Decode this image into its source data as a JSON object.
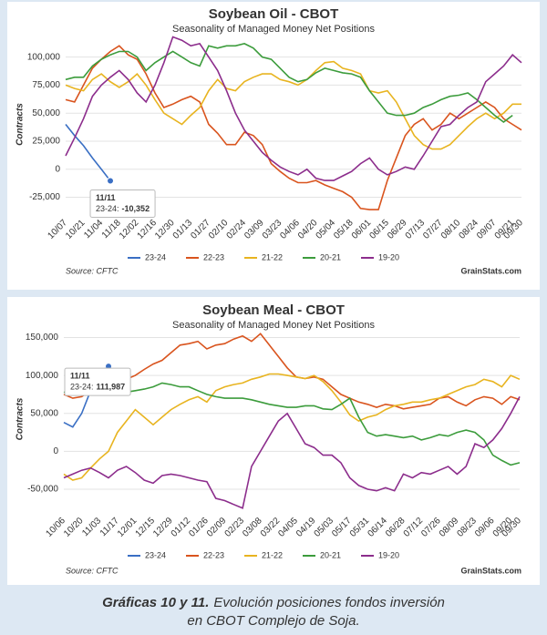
{
  "chart_data": [
    {
      "type": "line",
      "title": "Soybean Oil - CBOT",
      "subtitle": "Seasonality of Managed Money Net Positions",
      "y_label": "Contracts",
      "source": "Source: CFTC",
      "brand": "GrainStats.com",
      "grid": true,
      "legend": "bottom",
      "categories": [
        "10/07",
        null,
        "10/21",
        null,
        "11/04",
        null,
        "11/18",
        null,
        "12/02",
        null,
        "12/16",
        null,
        "12/30",
        null,
        "01/13",
        null,
        "01/27",
        null,
        "02/10",
        null,
        "02/24",
        null,
        "03/09",
        null,
        "03/23",
        null,
        "04/06",
        null,
        "04/20",
        null,
        "05/04",
        null,
        "05/18",
        null,
        "06/01",
        null,
        "06/15",
        null,
        "06/29",
        null,
        "07/13",
        null,
        "07/27",
        null,
        "08/10",
        null,
        "08/24",
        null,
        "09/07",
        null,
        "09/21",
        "09/30"
      ],
      "ylim": [
        -40000,
        120000
      ],
      "yticks": [
        {
          "value": -25000,
          "label": "-25,000"
        },
        0,
        {
          "value": 25000,
          "label": "25,000"
        },
        {
          "value": 50000,
          "label": "50,000"
        },
        {
          "value": 75000,
          "label": "75,000"
        },
        {
          "value": 100000,
          "label": "100,000"
        }
      ],
      "series": [
        {
          "name": "23-24",
          "color": "#3a6fc4",
          "values": [
            40000,
            30000,
            21000,
            10000,
            0,
            -10352,
            null,
            null,
            null,
            null,
            null,
            null,
            null,
            null,
            null,
            null,
            null,
            null,
            null,
            null,
            null,
            null,
            null,
            null,
            null,
            null,
            null,
            null,
            null,
            null,
            null,
            null,
            null,
            null,
            null,
            null,
            null,
            null,
            null,
            null,
            null,
            null,
            null,
            null,
            null,
            null,
            null,
            null,
            null,
            null,
            null,
            null
          ]
        },
        {
          "name": "22-23",
          "color": "#d9541e",
          "values": [
            62000,
            60000,
            75000,
            90000,
            98000,
            105000,
            110000,
            102000,
            98000,
            85000,
            68000,
            55000,
            58000,
            62000,
            65000,
            60000,
            40000,
            32000,
            22000,
            22000,
            33000,
            30000,
            22000,
            5000,
            -2000,
            -8000,
            -12000,
            -12000,
            -10000,
            -14000,
            -17000,
            -20000,
            -25000,
            -35000,
            -36000,
            -36000,
            -10000,
            10000,
            30000,
            40000,
            45000,
            35000,
            40000,
            50000,
            45000,
            50000,
            55000,
            60000,
            55000,
            45000,
            40000,
            35000
          ]
        },
        {
          "name": "21-22",
          "color": "#e8b420",
          "values": [
            75000,
            72000,
            70000,
            80000,
            85000,
            78000,
            73000,
            78000,
            85000,
            75000,
            62000,
            50000,
            45000,
            40000,
            48000,
            55000,
            70000,
            80000,
            72000,
            70000,
            78000,
            82000,
            85000,
            85000,
            80000,
            78000,
            75000,
            80000,
            88000,
            95000,
            96000,
            90000,
            88000,
            85000,
            70000,
            68000,
            70000,
            60000,
            45000,
            30000,
            22000,
            18000,
            18000,
            22000,
            30000,
            38000,
            45000,
            50000,
            45000,
            50000,
            58000,
            58000
          ]
        },
        {
          "name": "20-21",
          "color": "#3c9c3c",
          "values": [
            80000,
            82000,
            82000,
            92000,
            98000,
            102000,
            105000,
            105000,
            100000,
            88000,
            95000,
            100000,
            105000,
            100000,
            95000,
            92000,
            110000,
            108000,
            110000,
            110000,
            112000,
            108000,
            100000,
            98000,
            90000,
            82000,
            78000,
            80000,
            86000,
            90000,
            88000,
            86000,
            85000,
            82000,
            70000,
            60000,
            50000,
            48000,
            48000,
            50000,
            55000,
            58000,
            62000,
            65000,
            66000,
            68000,
            62000,
            55000,
            48000,
            42000,
            48000,
            null
          ]
        },
        {
          "name": "19-20",
          "color": "#8c2d8c",
          "values": [
            12000,
            28000,
            45000,
            65000,
            75000,
            82000,
            88000,
            80000,
            68000,
            60000,
            75000,
            95000,
            118000,
            115000,
            110000,
            112000,
            100000,
            88000,
            70000,
            50000,
            35000,
            25000,
            15000,
            8000,
            2000,
            -2000,
            -5000,
            0,
            -8000,
            -10000,
            -10000,
            -6000,
            -2000,
            5000,
            10000,
            0,
            -5000,
            -2000,
            2000,
            0,
            12000,
            25000,
            38000,
            40000,
            48000,
            55000,
            60000,
            78000,
            85000,
            92000,
            102000,
            95000
          ]
        }
      ],
      "tooltip": {
        "x": "11/11",
        "series": "23-24:",
        "value": -10352,
        "label": "-10,352"
      }
    },
    {
      "type": "line",
      "title": "Soybean Meal - CBOT",
      "subtitle": "Seasonality of Managed Money Net Positions",
      "y_label": "Contracts",
      "source": "Source: CFTC",
      "brand": "GrainStats.com",
      "grid": true,
      "legend": "bottom",
      "categories": [
        "10/06",
        null,
        "10/20",
        null,
        "11/03",
        null,
        "11/17",
        null,
        "12/01",
        null,
        "12/15",
        null,
        "12/29",
        null,
        "01/12",
        null,
        "01/26",
        null,
        "02/09",
        null,
        "02/23",
        null,
        "03/08",
        null,
        "03/22",
        null,
        "04/05",
        null,
        "04/19",
        null,
        "05/03",
        null,
        "05/17",
        null,
        "05/31",
        null,
        "06/14",
        null,
        "06/28",
        null,
        "07/12",
        null,
        "07/26",
        null,
        "08/09",
        null,
        "08/23",
        null,
        "09/06",
        null,
        "09/20",
        "09/30"
      ],
      "ylim": [
        -80000,
        165000
      ],
      "yticks": [
        {
          "value": -50000,
          "label": "-50,000"
        },
        0,
        {
          "value": 50000,
          "label": "50,000"
        },
        {
          "value": 100000,
          "label": "100,000"
        },
        {
          "value": 150000,
          "label": "150,000"
        }
      ],
      "series": [
        {
          "name": "23-24",
          "color": "#3a6fc4",
          "values": [
            38000,
            32000,
            50000,
            80000,
            105000,
            111987,
            null,
            null,
            null,
            null,
            null,
            null,
            null,
            null,
            null,
            null,
            null,
            null,
            null,
            null,
            null,
            null,
            null,
            null,
            null,
            null,
            null,
            null,
            null,
            null,
            null,
            null,
            null,
            null,
            null,
            null,
            null,
            null,
            null,
            null,
            null,
            null,
            null,
            null,
            null,
            null,
            null,
            null,
            null,
            null,
            null,
            null
          ]
        },
        {
          "name": "22-23",
          "color": "#d9541e",
          "values": [
            75000,
            70000,
            72000,
            80000,
            82000,
            85000,
            90000,
            95000,
            100000,
            108000,
            115000,
            120000,
            130000,
            140000,
            142000,
            145000,
            135000,
            140000,
            142000,
            148000,
            152000,
            145000,
            155000,
            140000,
            125000,
            110000,
            98000,
            96000,
            98000,
            95000,
            85000,
            75000,
            70000,
            65000,
            62000,
            58000,
            62000,
            60000,
            56000,
            58000,
            60000,
            62000,
            70000,
            72000,
            65000,
            60000,
            68000,
            72000,
            70000,
            62000,
            72000,
            68000
          ]
        },
        {
          "name": "21-22",
          "color": "#e8b420",
          "values": [
            -30000,
            -38000,
            -35000,
            -22000,
            -10000,
            0,
            25000,
            40000,
            55000,
            45000,
            35000,
            45000,
            55000,
            62000,
            68000,
            72000,
            65000,
            80000,
            85000,
            88000,
            90000,
            95000,
            98000,
            102000,
            102000,
            100000,
            98000,
            96000,
            100000,
            92000,
            80000,
            65000,
            48000,
            40000,
            45000,
            48000,
            55000,
            60000,
            62000,
            65000,
            65000,
            68000,
            70000,
            75000,
            80000,
            85000,
            88000,
            95000,
            92000,
            85000,
            100000,
            95000
          ]
        },
        {
          "name": "20-21",
          "color": "#3c9c3c",
          "values": [
            78000,
            75000,
            80000,
            85000,
            80000,
            78000,
            75000,
            78000,
            80000,
            82000,
            85000,
            90000,
            88000,
            85000,
            85000,
            80000,
            75000,
            72000,
            70000,
            70000,
            70000,
            68000,
            65000,
            62000,
            60000,
            58000,
            58000,
            60000,
            60000,
            56000,
            55000,
            62000,
            70000,
            45000,
            25000,
            20000,
            22000,
            20000,
            18000,
            20000,
            15000,
            18000,
            22000,
            20000,
            25000,
            28000,
            25000,
            15000,
            -5000,
            -12000,
            -18000,
            -15000
          ]
        },
        {
          "name": "19-20",
          "color": "#8c2d8c",
          "values": [
            -35000,
            -30000,
            -25000,
            -22000,
            -28000,
            -35000,
            -25000,
            -20000,
            -28000,
            -38000,
            -42000,
            -32000,
            -30000,
            -32000,
            -35000,
            -38000,
            -40000,
            -62000,
            -65000,
            -70000,
            -75000,
            -20000,
            0,
            20000,
            40000,
            50000,
            30000,
            10000,
            5000,
            -5000,
            -5000,
            -15000,
            -35000,
            -45000,
            -50000,
            -52000,
            -48000,
            -52000,
            -30000,
            -35000,
            -28000,
            -30000,
            -25000,
            -20000,
            -30000,
            -20000,
            10000,
            5000,
            15000,
            30000,
            50000,
            72000
          ]
        }
      ],
      "tooltip": {
        "x": "11/11",
        "series": "23-24:",
        "value": 111987,
        "label": "111,987"
      }
    }
  ],
  "caption": {
    "bold": "Gráficas 10 y 11.",
    "lines": [
      "Evolución posiciones fondos inversión",
      "en CBOT Complejo de Soja."
    ]
  }
}
